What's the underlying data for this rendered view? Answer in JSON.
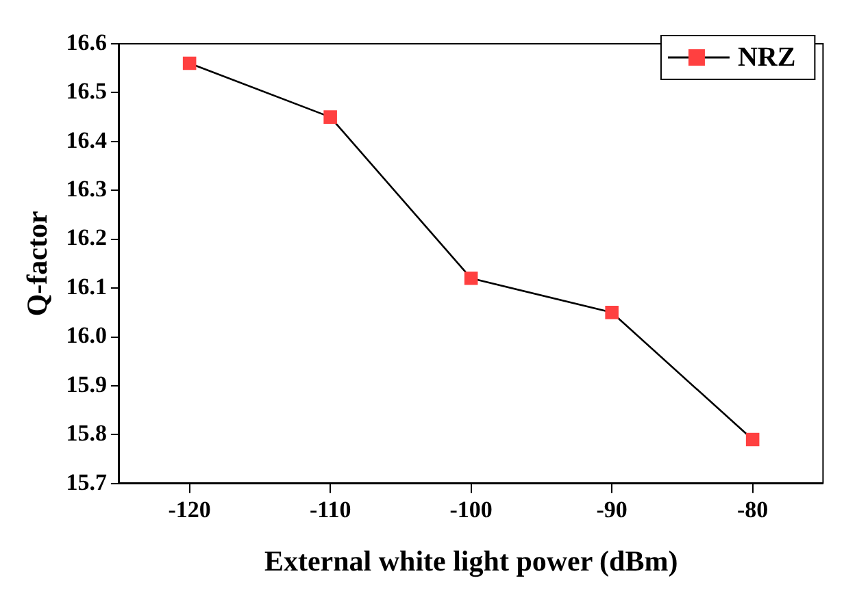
{
  "chart_data": {
    "type": "line",
    "xlabel": "External white light power (dBm)",
    "ylabel": "Q-factor",
    "x": [
      -120,
      -110,
      -100,
      -90,
      -80
    ],
    "series": [
      {
        "name": "NRZ",
        "color": "#ff4040",
        "values": [
          16.56,
          16.45,
          16.12,
          16.05,
          15.79
        ]
      }
    ],
    "xlim": [
      -125,
      -75
    ],
    "xticks": [
      -120,
      -110,
      -100,
      -90,
      -80
    ],
    "ylim": [
      15.7,
      16.6
    ],
    "yticks": [
      15.7,
      15.8,
      15.9,
      {
        "value": 16.0,
        "label": "16.0"
      },
      16.1,
      16.2,
      16.3,
      16.4,
      16.5,
      16.6
    ],
    "legend": "top right",
    "marker": "square",
    "line_style": "solid",
    "grid": false
  }
}
